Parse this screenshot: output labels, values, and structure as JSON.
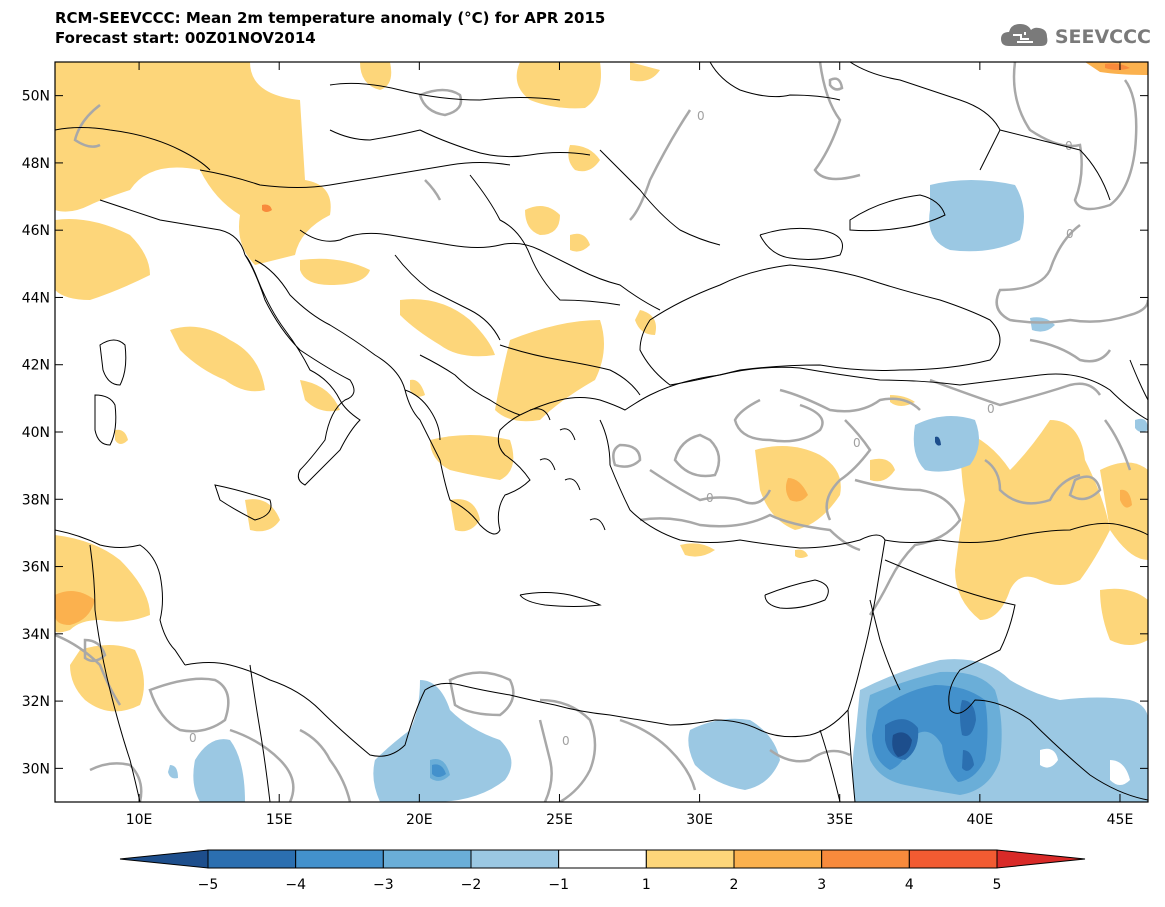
{
  "title": {
    "line1": "RCM-SEEVCCC: Mean 2m temperature anomaly (°C) for APR 2015",
    "line2": "Forecast start: 00Z01NOV2014"
  },
  "logo": {
    "text": "SEEVCCC",
    "icon": "cloud-icon"
  },
  "map": {
    "lon_range": [
      7,
      46
    ],
    "lat_range": [
      29,
      51
    ],
    "lon_ticks": [
      "10E",
      "15E",
      "20E",
      "25E",
      "30E",
      "35E",
      "40E",
      "45E"
    ],
    "lat_ticks": [
      "30N",
      "32N",
      "34N",
      "36N",
      "38N",
      "40N",
      "42N",
      "44N",
      "46N",
      "48N",
      "50N"
    ],
    "contour_label": "0",
    "colors": {
      "warm1": "#fdd67a",
      "warm2": "#fbb14e",
      "warm3": "#f88a3c",
      "cold1": "#9bc8e3",
      "cold2": "#6aaed8",
      "cold3": "#3f8fc8",
      "cold4": "#2166ac",
      "contour": "#a8a8a8"
    }
  },
  "colorbar": {
    "labels": [
      "-5",
      "-4",
      "-3",
      "-2",
      "-1",
      "1",
      "2",
      "3",
      "4",
      "5"
    ],
    "colors": [
      "#1d4e8c",
      "#2b6fb0",
      "#4391cc",
      "#6aaed8",
      "#9bc8e3",
      "#ffffff",
      "#fdd67a",
      "#fbb14e",
      "#f88a3c",
      "#f25b32",
      "#d92a28"
    ]
  }
}
